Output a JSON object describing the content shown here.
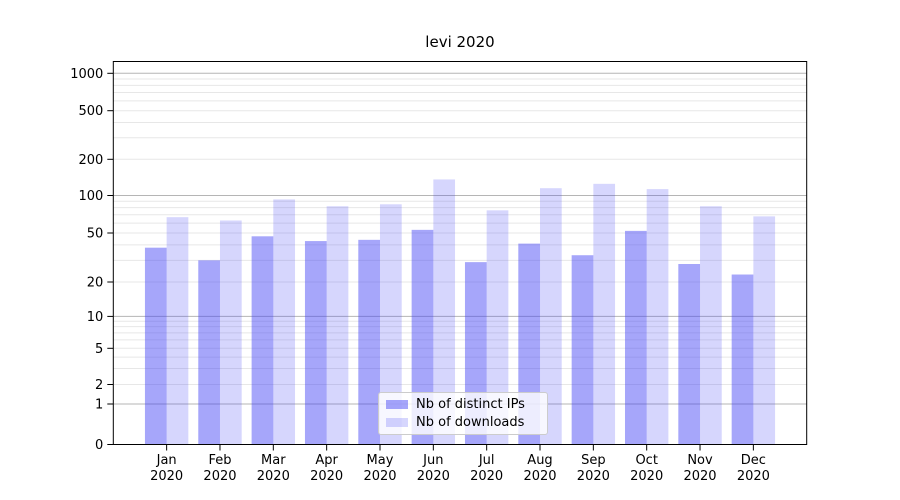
{
  "chart_data": {
    "type": "bar",
    "title": "levi 2020",
    "categories": [
      "Jan",
      "Feb",
      "Mar",
      "Apr",
      "May",
      "Jun",
      "Jul",
      "Aug",
      "Sep",
      "Oct",
      "Nov",
      "Dec"
    ],
    "category_year": "2020",
    "series": [
      {
        "name": "Nb of distinct IPs",
        "values": [
          38,
          30,
          47,
          43,
          44,
          53,
          29,
          41,
          33,
          52,
          28,
          23
        ]
      },
      {
        "name": "Nb of downloads",
        "values": [
          67,
          63,
          93,
          82,
          85,
          136,
          76,
          115,
          125,
          113,
          82,
          68
        ]
      }
    ],
    "yscale": "symlog",
    "yticks": [
      0,
      1,
      2,
      5,
      10,
      20,
      50,
      100,
      200,
      500,
      1000
    ],
    "ylim": [
      0,
      1240
    ],
    "grid": true,
    "legend_position": "lower center"
  },
  "colors": {
    "bar_distinct_ips": "rgba(70,70,245,0.48)",
    "bar_downloads": "rgba(70,70,245,0.22)",
    "grid_major": "#b5b5b5",
    "grid_minor": "#e7e7e7",
    "axis": "#000000",
    "text": "#000000",
    "legend_border": "#cccccc",
    "legend_background": "rgba(255,255,255,0.8)",
    "background": "#ffffff"
  }
}
